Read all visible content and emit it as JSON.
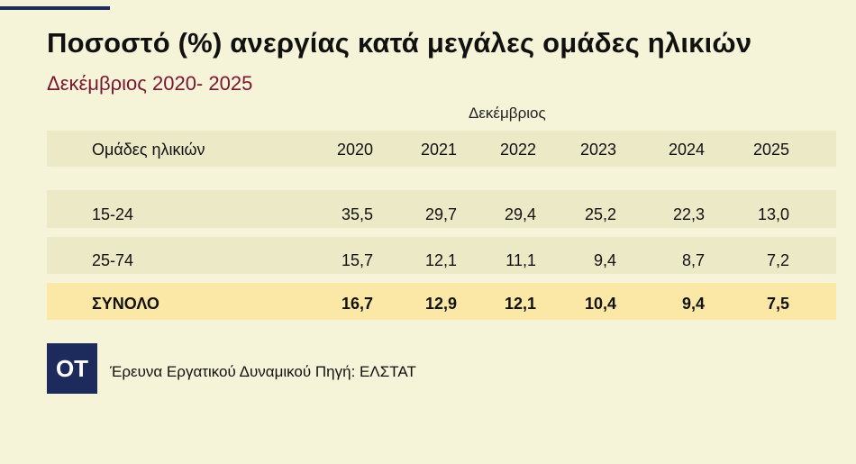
{
  "title": "Ποσοστό (%) ανεργίας κατά μεγάλες ομάδες ηλικιών",
  "subtitle": "Δεκέμβριος 2020- 2025",
  "logo_text": "OT",
  "source": "Έρευνα Εργατικού Δυναμικού Πηγή: ΕΛΣΤΑΤ",
  "colors": {
    "accent": "#1d2a5c",
    "subtitle": "#7a1530",
    "background": "#f6f4d8",
    "band": "#ebe9c6",
    "total_band": "#fbe8a6"
  },
  "chart_data": {
    "type": "table",
    "column_group_label": "Δεκέμβριος",
    "row_header_label": "Ομάδες ηλικιών",
    "columns": [
      "2020",
      "2021",
      "2022",
      "2023",
      "2024",
      "2025"
    ],
    "rows": [
      {
        "label": "15-24",
        "values": [
          "35,5",
          "29,7",
          "29,4",
          "25,2",
          "22,3",
          "13,0"
        ],
        "bold": false
      },
      {
        "label": "25-74",
        "values": [
          "15,7",
          "12,1",
          "11,1",
          "9,4",
          "8,7",
          "7,2"
        ],
        "bold": false
      },
      {
        "label": "ΣΥΝΟΛΟ",
        "values": [
          "16,7",
          "12,9",
          "12,1",
          "10,4",
          "9,4",
          "7,5"
        ],
        "bold": true
      }
    ]
  }
}
